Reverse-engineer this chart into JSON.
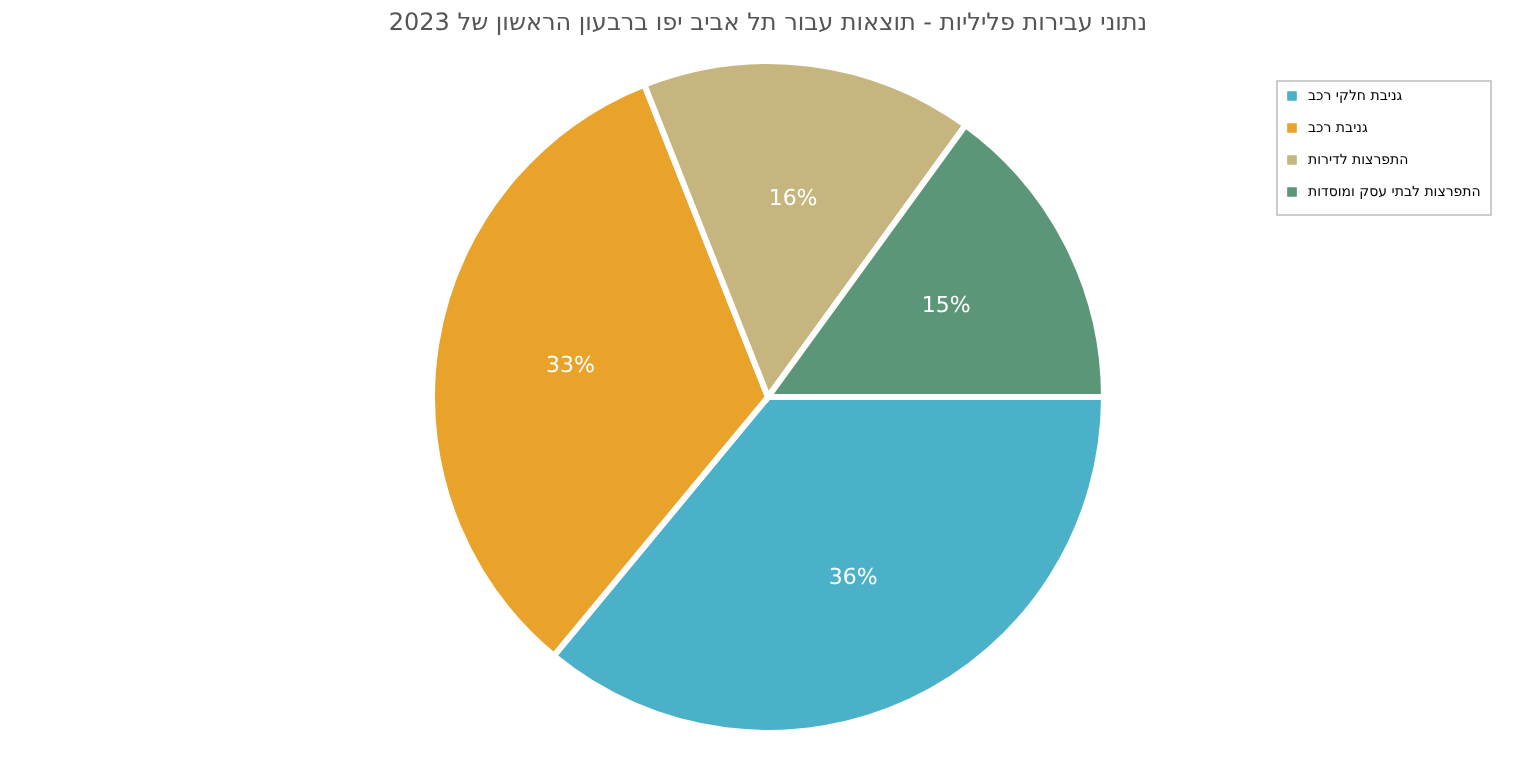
{
  "chart_data": {
    "type": "pie",
    "title": "נתוני עבירות פליליות - תוצאות עבור תל אביב יפו ברבעון הראשון של 2023",
    "categories": [
      "גניבת חלקי רכב",
      "גניבת רכב",
      "התפרצות לדירות",
      "התפרצות לבתי עסק ומוסדות"
    ],
    "values": [
      36,
      33,
      16,
      15
    ],
    "colors": [
      "#4bb1c9",
      "#eaa32a",
      "#c6b57e",
      "#5a9677"
    ],
    "value_labels": [
      "36%",
      "33%",
      "16%",
      "15%"
    ],
    "legend": "top right"
  }
}
